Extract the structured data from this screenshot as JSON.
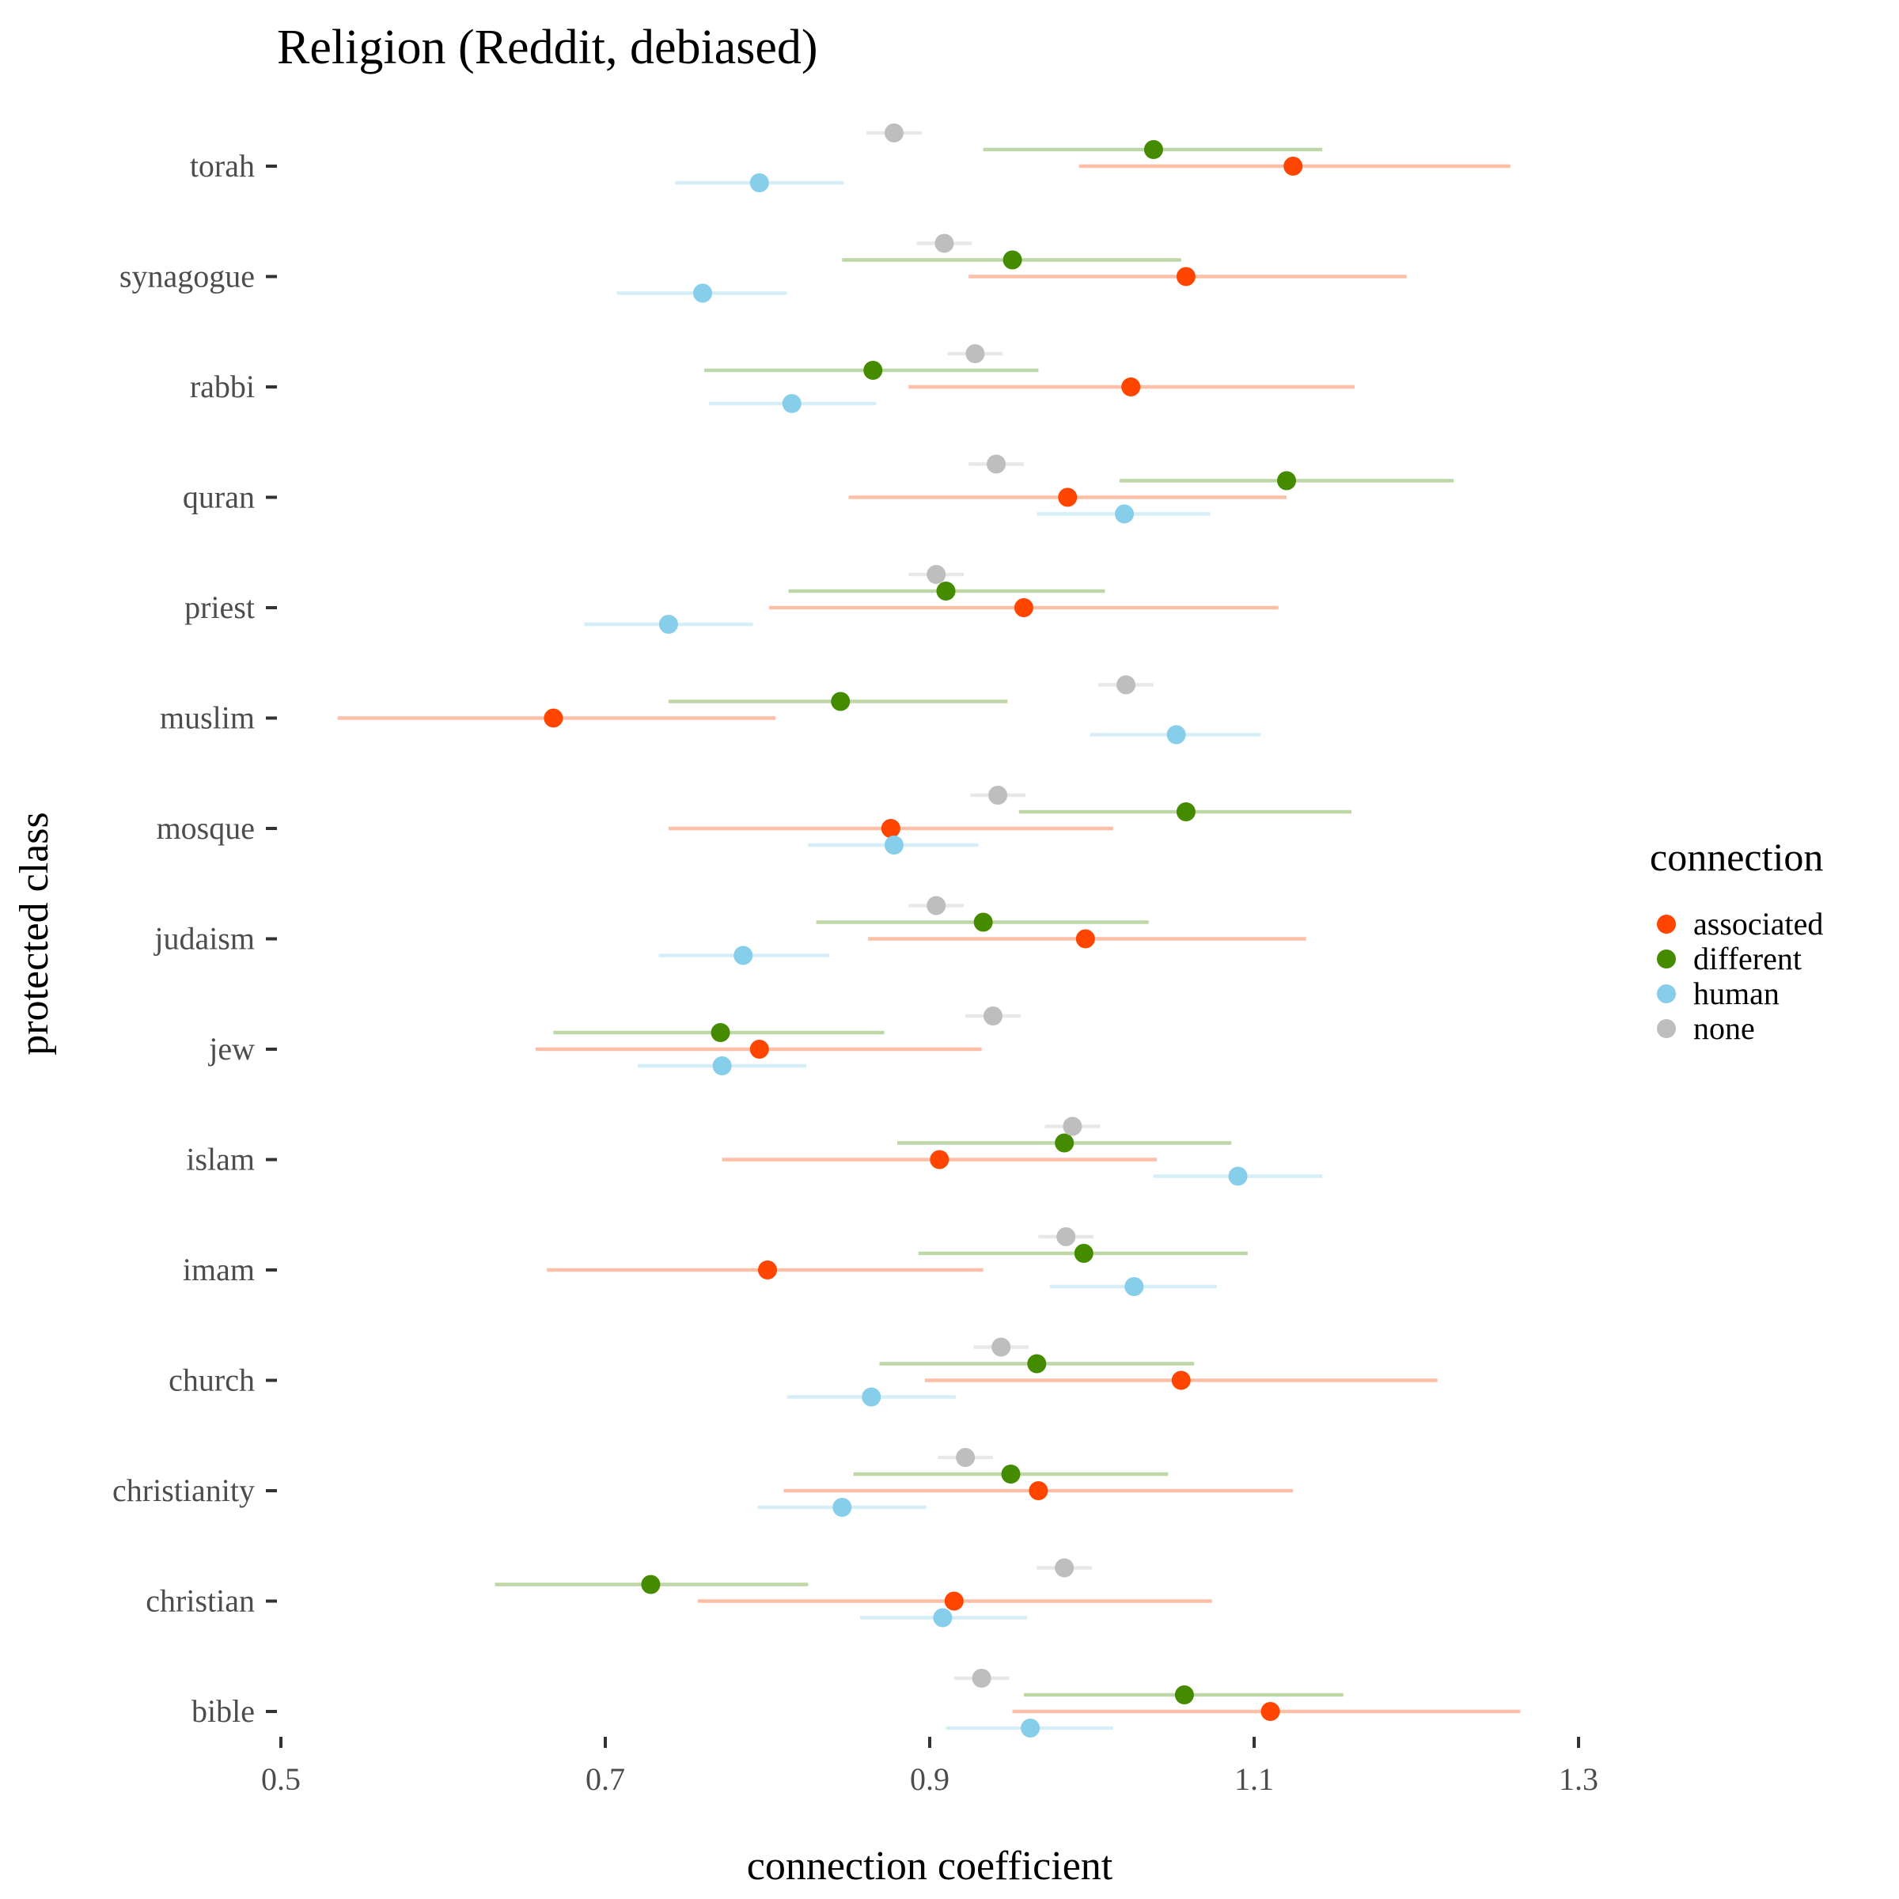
{
  "chart_data": {
    "type": "scatter",
    "title": "Religion (Reddit, debiased)",
    "xlabel": "connection coefficient",
    "ylabel": "protected class",
    "xlim": [
      0.5,
      1.3
    ],
    "xticks": [
      "0.5",
      "0.7",
      "0.9",
      "1.1",
      "1.3"
    ],
    "grid": false,
    "legend": {
      "title": "connection",
      "position": "right"
    },
    "categories": [
      "torah",
      "synagogue",
      "rabbi",
      "quran",
      "priest",
      "muslim",
      "mosque",
      "judaism",
      "jew",
      "islam",
      "imam",
      "church",
      "christianity",
      "christian",
      "bible"
    ],
    "series": [
      {
        "name": "associated",
        "color": "#ff4500",
        "values": [
          1.124,
          1.058,
          1.024,
          0.985,
          0.958,
          0.668,
          0.876,
          0.996,
          0.795,
          0.906,
          0.8,
          1.055,
          0.967,
          0.915,
          1.11
        ],
        "low": [
          0.992,
          0.924,
          0.887,
          0.85,
          0.801,
          0.535,
          0.739,
          0.862,
          0.657,
          0.772,
          0.664,
          0.897,
          0.81,
          0.757,
          0.951
        ],
        "high": [
          1.258,
          1.194,
          1.162,
          1.12,
          1.115,
          0.805,
          1.013,
          1.132,
          0.932,
          1.04,
          0.933,
          1.213,
          1.124,
          1.074,
          1.264
        ]
      },
      {
        "name": "different",
        "color": "#458b00",
        "values": [
          1.038,
          0.951,
          0.865,
          1.12,
          0.91,
          0.845,
          1.058,
          0.933,
          0.771,
          0.983,
          0.995,
          0.966,
          0.95,
          0.728,
          1.057
        ],
        "low": [
          0.933,
          0.846,
          0.761,
          1.017,
          0.813,
          0.739,
          0.955,
          0.83,
          0.668,
          0.88,
          0.893,
          0.869,
          0.853,
          0.632,
          0.958
        ],
        "high": [
          1.142,
          1.055,
          0.967,
          1.223,
          1.008,
          0.948,
          1.16,
          1.035,
          0.872,
          1.086,
          1.096,
          1.063,
          1.047,
          0.825,
          1.155
        ]
      },
      {
        "name": "human",
        "color": "#87ceeb",
        "values": [
          0.795,
          0.76,
          0.815,
          1.02,
          0.739,
          1.052,
          0.878,
          0.785,
          0.772,
          1.09,
          1.026,
          0.864,
          0.846,
          0.908,
          0.962
        ],
        "low": [
          0.743,
          0.707,
          0.764,
          0.966,
          0.687,
          0.999,
          0.825,
          0.733,
          0.72,
          1.038,
          0.974,
          0.812,
          0.794,
          0.857,
          0.91
        ],
        "high": [
          0.847,
          0.812,
          0.867,
          1.073,
          0.791,
          1.104,
          0.93,
          0.838,
          0.824,
          1.142,
          1.077,
          0.916,
          0.898,
          0.96,
          1.013
        ]
      },
      {
        "name": "none",
        "color": "#bebebe",
        "values": [
          0.878,
          0.909,
          0.928,
          0.941,
          0.904,
          1.021,
          0.942,
          0.904,
          0.939,
          0.988,
          0.984,
          0.944,
          0.922,
          0.983,
          0.932
        ],
        "low": [
          0.861,
          0.892,
          0.911,
          0.924,
          0.887,
          1.004,
          0.925,
          0.887,
          0.922,
          0.971,
          0.967,
          0.927,
          0.905,
          0.966,
          0.915
        ],
        "high": [
          0.895,
          0.926,
          0.945,
          0.958,
          0.921,
          1.038,
          0.959,
          0.921,
          0.956,
          1.005,
          1.001,
          0.961,
          0.939,
          1.0,
          0.949
        ]
      }
    ]
  }
}
